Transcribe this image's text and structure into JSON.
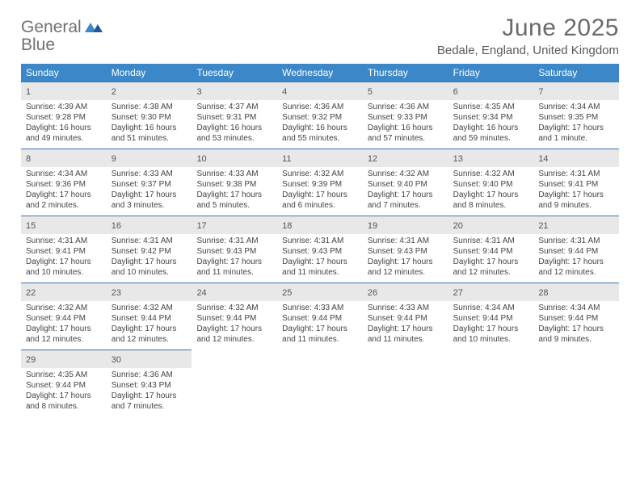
{
  "logo": {
    "text1": "General",
    "text2": "Blue"
  },
  "title": {
    "month": "June 2025",
    "location": "Bedale, England, United Kingdom"
  },
  "colors": {
    "header_bg": "#3b87c8",
    "daynum_bg": "#e8e8e8",
    "week_border": "#3b74a8",
    "text": "#333333",
    "title_color": "#6a6a6a"
  },
  "weekdays": [
    "Sunday",
    "Monday",
    "Tuesday",
    "Wednesday",
    "Thursday",
    "Friday",
    "Saturday"
  ],
  "weeks": [
    [
      {
        "day": "1",
        "sunrise": "Sunrise: 4:39 AM",
        "sunset": "Sunset: 9:28 PM",
        "daylight": "Daylight: 16 hours and 49 minutes."
      },
      {
        "day": "2",
        "sunrise": "Sunrise: 4:38 AM",
        "sunset": "Sunset: 9:30 PM",
        "daylight": "Daylight: 16 hours and 51 minutes."
      },
      {
        "day": "3",
        "sunrise": "Sunrise: 4:37 AM",
        "sunset": "Sunset: 9:31 PM",
        "daylight": "Daylight: 16 hours and 53 minutes."
      },
      {
        "day": "4",
        "sunrise": "Sunrise: 4:36 AM",
        "sunset": "Sunset: 9:32 PM",
        "daylight": "Daylight: 16 hours and 55 minutes."
      },
      {
        "day": "5",
        "sunrise": "Sunrise: 4:36 AM",
        "sunset": "Sunset: 9:33 PM",
        "daylight": "Daylight: 16 hours and 57 minutes."
      },
      {
        "day": "6",
        "sunrise": "Sunrise: 4:35 AM",
        "sunset": "Sunset: 9:34 PM",
        "daylight": "Daylight: 16 hours and 59 minutes."
      },
      {
        "day": "7",
        "sunrise": "Sunrise: 4:34 AM",
        "sunset": "Sunset: 9:35 PM",
        "daylight": "Daylight: 17 hours and 1 minute."
      }
    ],
    [
      {
        "day": "8",
        "sunrise": "Sunrise: 4:34 AM",
        "sunset": "Sunset: 9:36 PM",
        "daylight": "Daylight: 17 hours and 2 minutes."
      },
      {
        "day": "9",
        "sunrise": "Sunrise: 4:33 AM",
        "sunset": "Sunset: 9:37 PM",
        "daylight": "Daylight: 17 hours and 3 minutes."
      },
      {
        "day": "10",
        "sunrise": "Sunrise: 4:33 AM",
        "sunset": "Sunset: 9:38 PM",
        "daylight": "Daylight: 17 hours and 5 minutes."
      },
      {
        "day": "11",
        "sunrise": "Sunrise: 4:32 AM",
        "sunset": "Sunset: 9:39 PM",
        "daylight": "Daylight: 17 hours and 6 minutes."
      },
      {
        "day": "12",
        "sunrise": "Sunrise: 4:32 AM",
        "sunset": "Sunset: 9:40 PM",
        "daylight": "Daylight: 17 hours and 7 minutes."
      },
      {
        "day": "13",
        "sunrise": "Sunrise: 4:32 AM",
        "sunset": "Sunset: 9:40 PM",
        "daylight": "Daylight: 17 hours and 8 minutes."
      },
      {
        "day": "14",
        "sunrise": "Sunrise: 4:31 AM",
        "sunset": "Sunset: 9:41 PM",
        "daylight": "Daylight: 17 hours and 9 minutes."
      }
    ],
    [
      {
        "day": "15",
        "sunrise": "Sunrise: 4:31 AM",
        "sunset": "Sunset: 9:41 PM",
        "daylight": "Daylight: 17 hours and 10 minutes."
      },
      {
        "day": "16",
        "sunrise": "Sunrise: 4:31 AM",
        "sunset": "Sunset: 9:42 PM",
        "daylight": "Daylight: 17 hours and 10 minutes."
      },
      {
        "day": "17",
        "sunrise": "Sunrise: 4:31 AM",
        "sunset": "Sunset: 9:43 PM",
        "daylight": "Daylight: 17 hours and 11 minutes."
      },
      {
        "day": "18",
        "sunrise": "Sunrise: 4:31 AM",
        "sunset": "Sunset: 9:43 PM",
        "daylight": "Daylight: 17 hours and 11 minutes."
      },
      {
        "day": "19",
        "sunrise": "Sunrise: 4:31 AM",
        "sunset": "Sunset: 9:43 PM",
        "daylight": "Daylight: 17 hours and 12 minutes."
      },
      {
        "day": "20",
        "sunrise": "Sunrise: 4:31 AM",
        "sunset": "Sunset: 9:44 PM",
        "daylight": "Daylight: 17 hours and 12 minutes."
      },
      {
        "day": "21",
        "sunrise": "Sunrise: 4:31 AM",
        "sunset": "Sunset: 9:44 PM",
        "daylight": "Daylight: 17 hours and 12 minutes."
      }
    ],
    [
      {
        "day": "22",
        "sunrise": "Sunrise: 4:32 AM",
        "sunset": "Sunset: 9:44 PM",
        "daylight": "Daylight: 17 hours and 12 minutes."
      },
      {
        "day": "23",
        "sunrise": "Sunrise: 4:32 AM",
        "sunset": "Sunset: 9:44 PM",
        "daylight": "Daylight: 17 hours and 12 minutes."
      },
      {
        "day": "24",
        "sunrise": "Sunrise: 4:32 AM",
        "sunset": "Sunset: 9:44 PM",
        "daylight": "Daylight: 17 hours and 12 minutes."
      },
      {
        "day": "25",
        "sunrise": "Sunrise: 4:33 AM",
        "sunset": "Sunset: 9:44 PM",
        "daylight": "Daylight: 17 hours and 11 minutes."
      },
      {
        "day": "26",
        "sunrise": "Sunrise: 4:33 AM",
        "sunset": "Sunset: 9:44 PM",
        "daylight": "Daylight: 17 hours and 11 minutes."
      },
      {
        "day": "27",
        "sunrise": "Sunrise: 4:34 AM",
        "sunset": "Sunset: 9:44 PM",
        "daylight": "Daylight: 17 hours and 10 minutes."
      },
      {
        "day": "28",
        "sunrise": "Sunrise: 4:34 AM",
        "sunset": "Sunset: 9:44 PM",
        "daylight": "Daylight: 17 hours and 9 minutes."
      }
    ],
    [
      {
        "day": "29",
        "sunrise": "Sunrise: 4:35 AM",
        "sunset": "Sunset: 9:44 PM",
        "daylight": "Daylight: 17 hours and 8 minutes."
      },
      {
        "day": "30",
        "sunrise": "Sunrise: 4:36 AM",
        "sunset": "Sunset: 9:43 PM",
        "daylight": "Daylight: 17 hours and 7 minutes."
      },
      null,
      null,
      null,
      null,
      null
    ]
  ]
}
